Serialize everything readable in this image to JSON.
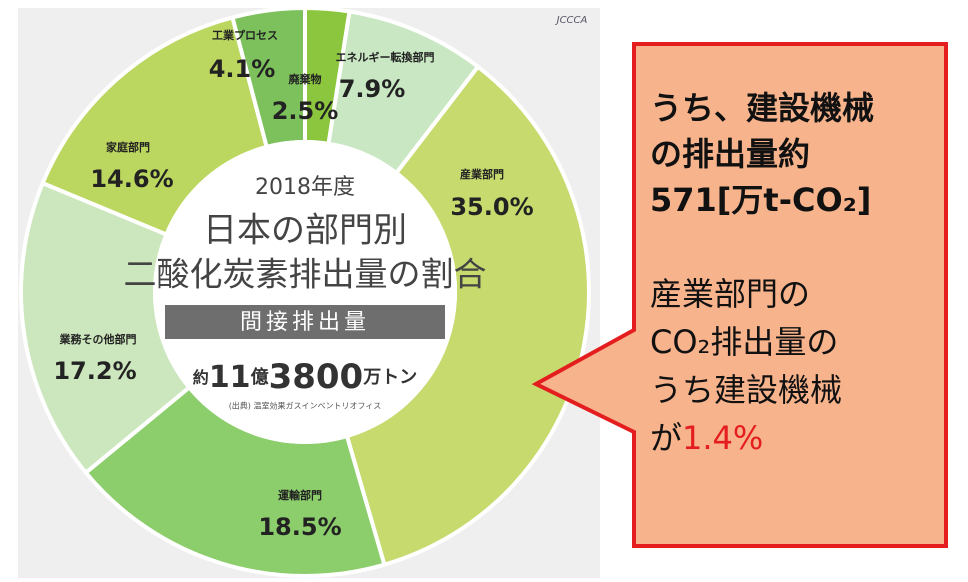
{
  "chart_data": {
    "type": "donut",
    "title": "日本の部門別",
    "title_line2": "二酸化炭素排出量の割合",
    "subtitle": "2018年度",
    "band_label": "間接排出量",
    "total_parts": [
      "約",
      "11",
      "億",
      "3800",
      "万トン"
    ],
    "source": "(出典) 温室効果ガスインベントリオフィス",
    "logo": "JCCCA",
    "categories": [
      "廃棄物",
      "エネルギー転換部門",
      "産業部門",
      "運輸部門",
      "業務その他部門",
      "家庭部門",
      "工業プロセス"
    ],
    "values": [
      2.5,
      7.9,
      35.0,
      18.5,
      17.2,
      14.6,
      4.1
    ],
    "value_labels": [
      "2.5%",
      "7.9%",
      "35.0%",
      "18.5%",
      "17.2%",
      "14.6%",
      "4.1%"
    ],
    "colors": [
      "#8cc63e",
      "#c9e7c3",
      "#c6da6e",
      "#8ccd6c",
      "#cce7bd",
      "#bcd75f",
      "#7dc15d"
    ]
  },
  "callout": {
    "lines": [
      "うち、建設機械",
      "の排出量約",
      "571[万t-CO₂]"
    ],
    "lines2": [
      "産業部門の",
      "CO₂排出量の",
      "うち建設機械"
    ],
    "last_prefix": "が",
    "highlight": "1.4%"
  }
}
